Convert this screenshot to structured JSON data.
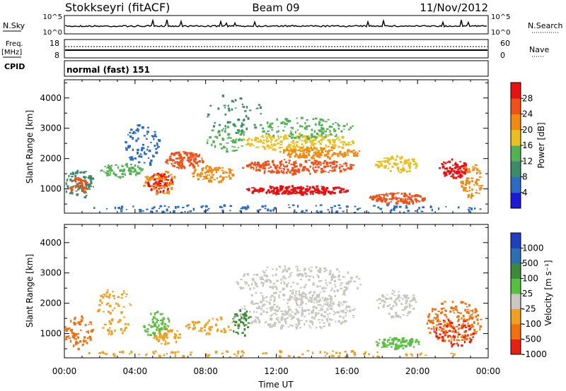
{
  "header": {
    "radar": "Stokkseyri (fitACF)",
    "beam": "Beam 09",
    "date": "11/Nov/2012"
  },
  "summary": {
    "nsky_label": "N.Sky",
    "nsky_ticks": [
      "10^5",
      "10^0"
    ],
    "nsearch_label": "N.Search",
    "freq_label": "Freq.",
    "freq_unit": "[MHz]",
    "freq_ticks": [
      "18",
      "8"
    ],
    "nave_ticks": [
      "60",
      "0"
    ],
    "nave_label": "Nave",
    "cpid_label": "CPID",
    "cpid_value": "normal (fast) 151"
  },
  "chart_data": {
    "type": "heatmap",
    "x_range_hours": [
      0,
      24
    ],
    "x_ticks": [
      "00:00",
      "04:00",
      "08:00",
      "12:00",
      "16:00",
      "20:00",
      "00:00"
    ],
    "xlabel": "Time UT",
    "panels": [
      {
        "name": "power",
        "ylabel": "Slant Range [km]",
        "ylim": [
          200,
          4600
        ],
        "y_ticks": [
          "1000",
          "2000",
          "3000",
          "4000"
        ],
        "colorbar_label": "Power [dB]",
        "colorbar_ticks": [
          "4",
          "8",
          "12",
          "16",
          "20",
          "24",
          "28"
        ],
        "colorbar_colors": [
          "#1a1ad8",
          "#2b6bc4",
          "#3d8a6a",
          "#52b055",
          "#e8c020",
          "#f08a10",
          "#f0501a",
          "#e81010"
        ]
      },
      {
        "name": "velocity",
        "ylabel": "Slant Range [km]",
        "ylim": [
          200,
          4600
        ],
        "y_ticks": [
          "1000",
          "2000",
          "3000",
          "4000"
        ],
        "colorbar_label": "Velocity [m s⁻¹]",
        "colorbar_ticks": [
          "1000",
          "500",
          "100",
          "25",
          "-25",
          "-100",
          "-500",
          "-1000"
        ],
        "colorbar_colors": [
          "#2040c0",
          "#2a70b0",
          "#3c8a3c",
          "#58c040",
          "#c8c8c0",
          "#f0a020",
          "#f07010",
          "#e82010"
        ]
      }
    ]
  }
}
